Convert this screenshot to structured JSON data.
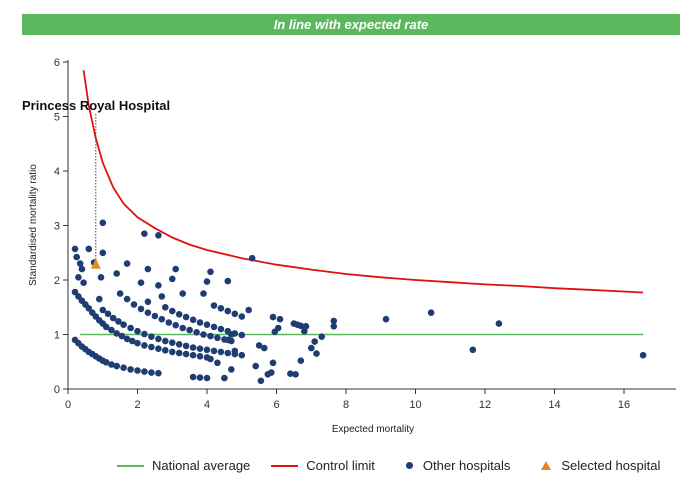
{
  "banner": {
    "text": "In line with expected rate",
    "color": "#5cb85c"
  },
  "chart_data": {
    "type": "scatter",
    "xlabel": "Expected mortality",
    "ylabel": "Standardised mortality ratio",
    "xlim": [
      0,
      17
    ],
    "ylim": [
      0,
      6
    ],
    "xticks": [
      0,
      2,
      4,
      6,
      8,
      10,
      12,
      14,
      16
    ],
    "yticks": [
      0,
      1,
      2,
      3,
      4,
      5,
      6
    ],
    "grid": false,
    "legend_position": "bottom",
    "national_average": {
      "name": "National average",
      "value": 1,
      "x_range": [
        0.35,
        16.55
      ],
      "color": "#5cb85c"
    },
    "control_limit": {
      "name": "Control limit",
      "color": "#e01010",
      "points": [
        [
          0.45,
          5.85
        ],
        [
          0.6,
          5.2
        ],
        [
          0.8,
          4.6
        ],
        [
          1.0,
          4.15
        ],
        [
          1.3,
          3.7
        ],
        [
          1.6,
          3.4
        ],
        [
          2.0,
          3.15
        ],
        [
          2.5,
          2.95
        ],
        [
          3.0,
          2.78
        ],
        [
          3.5,
          2.65
        ],
        [
          4.0,
          2.55
        ],
        [
          5.0,
          2.4
        ],
        [
          6.0,
          2.28
        ],
        [
          7.0,
          2.19
        ],
        [
          8.0,
          2.11
        ],
        [
          9.0,
          2.05
        ],
        [
          10.0,
          2.0
        ],
        [
          11.0,
          1.96
        ],
        [
          12.0,
          1.92
        ],
        [
          13.0,
          1.89
        ],
        [
          14.0,
          1.85
        ],
        [
          15.0,
          1.82
        ],
        [
          16.55,
          1.77
        ]
      ]
    },
    "selected_hospital": {
      "name": "Selected hospital",
      "label": "Princess Royal Hospital",
      "x": 0.8,
      "y": 2.28,
      "color": "#e8891c"
    },
    "other_hospitals": {
      "name": "Other hospitals",
      "color": "#1f3d73",
      "points": [
        [
          0.2,
          2.57
        ],
        [
          0.6,
          2.57
        ],
        [
          0.25,
          2.42
        ],
        [
          0.35,
          2.3
        ],
        [
          0.4,
          2.2
        ],
        [
          0.75,
          2.32
        ],
        [
          1.0,
          3.05
        ],
        [
          1.0,
          2.5
        ],
        [
          0.95,
          2.05
        ],
        [
          0.9,
          1.65
        ],
        [
          0.3,
          2.05
        ],
        [
          0.45,
          1.95
        ],
        [
          2.2,
          2.85
        ],
        [
          2.6,
          2.82
        ],
        [
          5.3,
          2.4
        ],
        [
          2.3,
          2.2
        ],
        [
          3.1,
          2.2
        ],
        [
          4.1,
          2.15
        ],
        [
          4.6,
          1.98
        ],
        [
          4.0,
          1.97
        ],
        [
          1.4,
          2.12
        ],
        [
          1.7,
          2.3
        ],
        [
          2.1,
          1.95
        ],
        [
          2.6,
          1.9
        ],
        [
          3.0,
          2.02
        ],
        [
          3.3,
          1.75
        ],
        [
          3.9,
          1.75
        ],
        [
          2.7,
          1.7
        ],
        [
          2.3,
          1.6
        ],
        [
          0.2,
          1.78
        ],
        [
          0.3,
          1.7
        ],
        [
          0.4,
          1.62
        ],
        [
          0.5,
          1.55
        ],
        [
          0.6,
          1.48
        ],
        [
          0.7,
          1.4
        ],
        [
          0.8,
          1.33
        ],
        [
          0.9,
          1.26
        ],
        [
          1.0,
          1.2
        ],
        [
          1.1,
          1.14
        ],
        [
          1.25,
          1.08
        ],
        [
          1.4,
          1.02
        ],
        [
          1.55,
          0.97
        ],
        [
          1.7,
          0.92
        ],
        [
          1.85,
          0.88
        ],
        [
          2.0,
          0.84
        ],
        [
          2.2,
          0.8
        ],
        [
          2.4,
          0.77
        ],
        [
          2.6,
          0.74
        ],
        [
          2.8,
          0.71
        ],
        [
          3.0,
          0.68
        ],
        [
          3.2,
          0.66
        ],
        [
          3.4,
          0.64
        ],
        [
          3.6,
          0.62
        ],
        [
          3.8,
          0.6
        ],
        [
          4.0,
          0.58
        ],
        [
          0.2,
          0.9
        ],
        [
          0.3,
          0.84
        ],
        [
          0.4,
          0.78
        ],
        [
          0.5,
          0.73
        ],
        [
          0.6,
          0.68
        ],
        [
          0.7,
          0.64
        ],
        [
          0.8,
          0.6
        ],
        [
          0.9,
          0.56
        ],
        [
          1.0,
          0.52
        ],
        [
          1.1,
          0.49
        ],
        [
          1.25,
          0.45
        ],
        [
          1.4,
          0.42
        ],
        [
          1.6,
          0.39
        ],
        [
          1.8,
          0.36
        ],
        [
          2.0,
          0.34
        ],
        [
          2.2,
          0.32
        ],
        [
          2.4,
          0.3
        ],
        [
          2.6,
          0.29
        ],
        [
          1.0,
          1.45
        ],
        [
          1.15,
          1.38
        ],
        [
          1.3,
          1.3
        ],
        [
          1.45,
          1.24
        ],
        [
          1.6,
          1.18
        ],
        [
          1.8,
          1.12
        ],
        [
          2.0,
          1.06
        ],
        [
          2.2,
          1.01
        ],
        [
          2.4,
          0.96
        ],
        [
          2.6,
          0.92
        ],
        [
          2.8,
          0.88
        ],
        [
          3.0,
          0.85
        ],
        [
          3.2,
          0.82
        ],
        [
          3.4,
          0.79
        ],
        [
          3.6,
          0.76
        ],
        [
          3.8,
          0.74
        ],
        [
          4.0,
          0.72
        ],
        [
          4.2,
          0.7
        ],
        [
          4.4,
          0.68
        ],
        [
          4.6,
          0.66
        ],
        [
          4.8,
          0.64
        ],
        [
          5.0,
          0.62
        ],
        [
          1.5,
          1.75
        ],
        [
          1.7,
          1.65
        ],
        [
          1.9,
          1.55
        ],
        [
          2.1,
          1.47
        ],
        [
          2.3,
          1.4
        ],
        [
          2.5,
          1.34
        ],
        [
          2.7,
          1.28
        ],
        [
          2.9,
          1.22
        ],
        [
          3.1,
          1.17
        ],
        [
          3.3,
          1.12
        ],
        [
          3.5,
          1.08
        ],
        [
          3.7,
          1.04
        ],
        [
          3.9,
          1.0
        ],
        [
          4.1,
          0.97
        ],
        [
          4.3,
          0.94
        ],
        [
          4.5,
          0.91
        ],
        [
          4.7,
          0.88
        ],
        [
          2.8,
          1.5
        ],
        [
          3.0,
          1.43
        ],
        [
          3.2,
          1.37
        ],
        [
          3.4,
          1.32
        ],
        [
          3.6,
          1.27
        ],
        [
          3.8,
          1.22
        ],
        [
          4.0,
          1.18
        ],
        [
          4.2,
          1.14
        ],
        [
          4.4,
          1.1
        ],
        [
          4.6,
          1.06
        ],
        [
          4.8,
          1.02
        ],
        [
          5.0,
          0.99
        ],
        [
          4.2,
          1.53
        ],
        [
          4.4,
          1.48
        ],
        [
          4.6,
          1.43
        ],
        [
          4.8,
          1.38
        ],
        [
          5.0,
          1.33
        ],
        [
          5.2,
          1.45
        ],
        [
          3.6,
          0.22
        ],
        [
          3.8,
          0.21
        ],
        [
          4.0,
          0.2
        ],
        [
          4.5,
          0.2
        ],
        [
          4.7,
          0.36
        ],
        [
          4.3,
          0.48
        ],
        [
          4.1,
          0.55
        ],
        [
          4.8,
          0.7
        ],
        [
          4.7,
          1.0
        ],
        [
          4.6,
          0.9
        ],
        [
          5.5,
          0.8
        ],
        [
          5.65,
          0.75
        ],
        [
          5.4,
          0.42
        ],
        [
          5.55,
          0.15
        ],
        [
          5.75,
          0.27
        ],
        [
          5.85,
          0.3
        ],
        [
          5.9,
          0.48
        ],
        [
          5.95,
          1.05
        ],
        [
          6.05,
          1.12
        ],
        [
          5.9,
          1.32
        ],
        [
          6.1,
          1.28
        ],
        [
          6.4,
          0.28
        ],
        [
          6.55,
          0.27
        ],
        [
          6.5,
          1.2
        ],
        [
          6.6,
          1.18
        ],
        [
          6.7,
          1.16
        ],
        [
          6.8,
          1.06
        ],
        [
          6.85,
          1.15
        ],
        [
          6.7,
          0.52
        ],
        [
          7.0,
          0.75
        ],
        [
          7.1,
          0.87
        ],
        [
          7.15,
          0.65
        ],
        [
          7.3,
          0.96
        ],
        [
          7.65,
          1.25
        ],
        [
          7.65,
          1.15
        ],
        [
          9.15,
          1.28
        ],
        [
          10.45,
          1.4
        ],
        [
          11.65,
          0.72
        ],
        [
          12.4,
          1.2
        ],
        [
          16.55,
          0.62
        ]
      ]
    }
  },
  "legend": [
    {
      "label": "National average",
      "kind": "line",
      "color": "#5cb85c"
    },
    {
      "label": "Control limit",
      "kind": "line",
      "color": "#e01010"
    },
    {
      "label": "Other hospitals",
      "kind": "dot",
      "color": "#1f3d73"
    },
    {
      "label": "Selected hospital",
      "kind": "triangle",
      "color": "#e8891c"
    }
  ]
}
